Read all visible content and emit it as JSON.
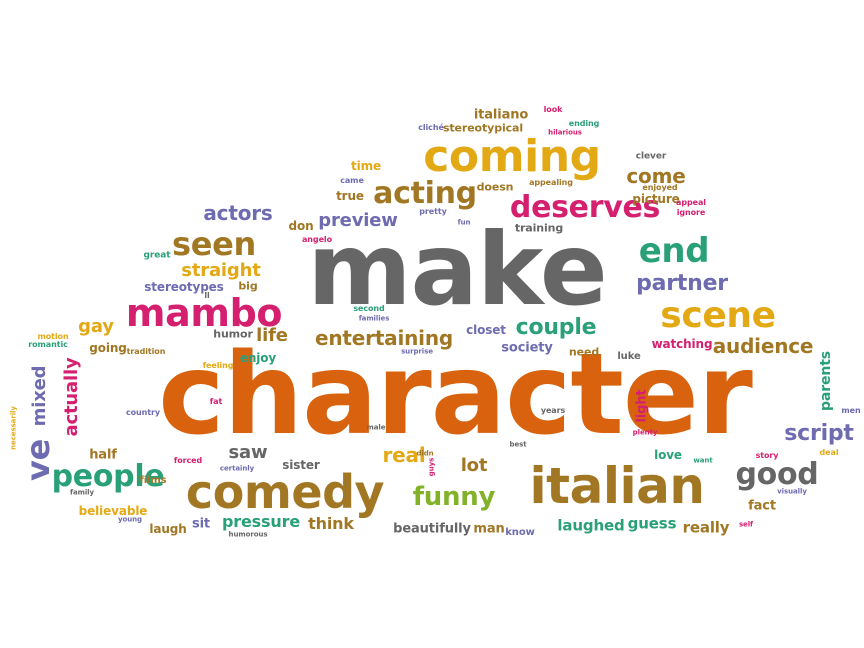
{
  "colors": {
    "orange": "#d8620e",
    "gold": "#e3a915",
    "brown": "#a17724",
    "gray": "#666666",
    "magenta": "#d4206f",
    "teal": "#2aa079",
    "purple": "#6e6bb0",
    "green": "#82b22a",
    "red": "#c0392b"
  },
  "words": [
    {
      "text": "character",
      "color": "orange"
    },
    {
      "text": "make",
      "color": "gray"
    },
    {
      "text": "italian",
      "color": "brown"
    },
    {
      "text": "comedy",
      "color": "brown"
    },
    {
      "text": "coming",
      "color": "gold"
    },
    {
      "text": "mambo",
      "color": "magenta"
    },
    {
      "text": "scene",
      "color": "gold"
    },
    {
      "text": "deserves",
      "color": "magenta"
    },
    {
      "text": "seen",
      "color": "brown"
    },
    {
      "text": "acting",
      "color": "brown"
    },
    {
      "text": "end",
      "color": "teal"
    },
    {
      "text": "people",
      "color": "teal"
    },
    {
      "text": "funny",
      "color": "green"
    },
    {
      "text": "good",
      "color": "gray"
    },
    {
      "text": "ve",
      "color": "purple"
    },
    {
      "text": "couple",
      "color": "teal"
    },
    {
      "text": "entertaining",
      "color": "brown"
    },
    {
      "text": "partner",
      "color": "purple"
    },
    {
      "text": "audience",
      "color": "brown"
    },
    {
      "text": "script",
      "color": "purple"
    },
    {
      "text": "actors",
      "color": "purple"
    },
    {
      "text": "preview",
      "color": "purple"
    },
    {
      "text": "come",
      "color": "brown"
    },
    {
      "text": "straight",
      "color": "gold"
    },
    {
      "text": "mixed",
      "color": "purple"
    },
    {
      "text": "actually",
      "color": "magenta"
    },
    {
      "text": "real",
      "color": "gold"
    },
    {
      "text": "lot",
      "color": "brown"
    },
    {
      "text": "saw",
      "color": "gray"
    },
    {
      "text": "pressure",
      "color": "teal"
    },
    {
      "text": "life",
      "color": "brown"
    },
    {
      "text": "gay",
      "color": "gold"
    },
    {
      "text": "think",
      "color": "brown"
    },
    {
      "text": "laughed",
      "color": "teal"
    },
    {
      "text": "guess",
      "color": "teal"
    },
    {
      "text": "really",
      "color": "brown"
    },
    {
      "text": "stereotypes",
      "color": "purple"
    },
    {
      "text": "italiano",
      "color": "brown"
    },
    {
      "text": "stereotypical",
      "color": "brown"
    },
    {
      "text": "society",
      "color": "purple"
    },
    {
      "text": "enjoy",
      "color": "teal"
    },
    {
      "text": "picture",
      "color": "brown"
    },
    {
      "text": "watching",
      "color": "magenta"
    },
    {
      "text": "parents",
      "color": "teal"
    },
    {
      "text": "beautifully",
      "color": "gray"
    },
    {
      "text": "man",
      "color": "brown"
    },
    {
      "text": "half",
      "color": "brown"
    },
    {
      "text": "sit",
      "color": "purple"
    },
    {
      "text": "laugh",
      "color": "brown"
    },
    {
      "text": "sister",
      "color": "gray"
    },
    {
      "text": "fact",
      "color": "brown"
    },
    {
      "text": "love",
      "color": "teal"
    },
    {
      "text": "light",
      "color": "magenta"
    },
    {
      "text": "believable",
      "color": "gold"
    },
    {
      "text": "going",
      "color": "brown"
    },
    {
      "text": "time",
      "color": "gold"
    },
    {
      "text": "true",
      "color": "brown"
    },
    {
      "text": "doesn",
      "color": "brown"
    },
    {
      "text": "don",
      "color": "brown"
    },
    {
      "text": "training",
      "color": "gray"
    },
    {
      "text": "humor",
      "color": "gray"
    },
    {
      "text": "closet",
      "color": "purple"
    },
    {
      "text": "need",
      "color": "brown"
    },
    {
      "text": "luke",
      "color": "gray"
    },
    {
      "text": "films",
      "color": "brown"
    },
    {
      "text": "big",
      "color": "brown"
    },
    {
      "text": "know",
      "color": "purple"
    },
    {
      "text": "great",
      "color": "teal"
    },
    {
      "text": "clever",
      "color": "gray"
    },
    {
      "text": "cliché",
      "color": "purple"
    },
    {
      "text": "look",
      "color": "magenta"
    },
    {
      "text": "ending",
      "color": "teal"
    },
    {
      "text": "hilarious",
      "color": "magenta"
    },
    {
      "text": "came",
      "color": "purple"
    },
    {
      "text": "appealing",
      "color": "brown"
    },
    {
      "text": "enjoyed",
      "color": "brown"
    },
    {
      "text": "appeal",
      "color": "magenta"
    },
    {
      "text": "ignore",
      "color": "magenta"
    },
    {
      "text": "pretty",
      "color": "purple"
    },
    {
      "text": "fun",
      "color": "purple"
    },
    {
      "text": "angelo",
      "color": "magenta"
    },
    {
      "text": "ll",
      "color": "gray"
    },
    {
      "text": "second",
      "color": "teal"
    },
    {
      "text": "families",
      "color": "purple"
    },
    {
      "text": "motion",
      "color": "gold"
    },
    {
      "text": "romantic",
      "color": "teal"
    },
    {
      "text": "tradition",
      "color": "brown"
    },
    {
      "text": "feeling",
      "color": "gold"
    },
    {
      "text": "surprise",
      "color": "purple"
    },
    {
      "text": "country",
      "color": "purple"
    },
    {
      "text": "fat",
      "color": "magenta"
    },
    {
      "text": "male",
      "color": "gray"
    },
    {
      "text": "years",
      "color": "gray"
    },
    {
      "text": "plenty",
      "color": "magenta"
    },
    {
      "text": "story",
      "color": "magenta"
    },
    {
      "text": "men",
      "color": "purple"
    },
    {
      "text": "deal",
      "color": "gold"
    },
    {
      "text": "best",
      "color": "gray"
    },
    {
      "text": "guys",
      "color": "magenta"
    },
    {
      "text": "didn",
      "color": "brown"
    },
    {
      "text": "forced",
      "color": "magenta"
    },
    {
      "text": "certainly",
      "color": "purple"
    },
    {
      "text": "want",
      "color": "teal"
    },
    {
      "text": "visually",
      "color": "purple"
    },
    {
      "text": "self",
      "color": "magenta"
    },
    {
      "text": "family",
      "color": "gray"
    },
    {
      "text": "young",
      "color": "purple"
    },
    {
      "text": "humorous",
      "color": "gray"
    },
    {
      "text": "necessarily",
      "color": "gold"
    }
  ]
}
